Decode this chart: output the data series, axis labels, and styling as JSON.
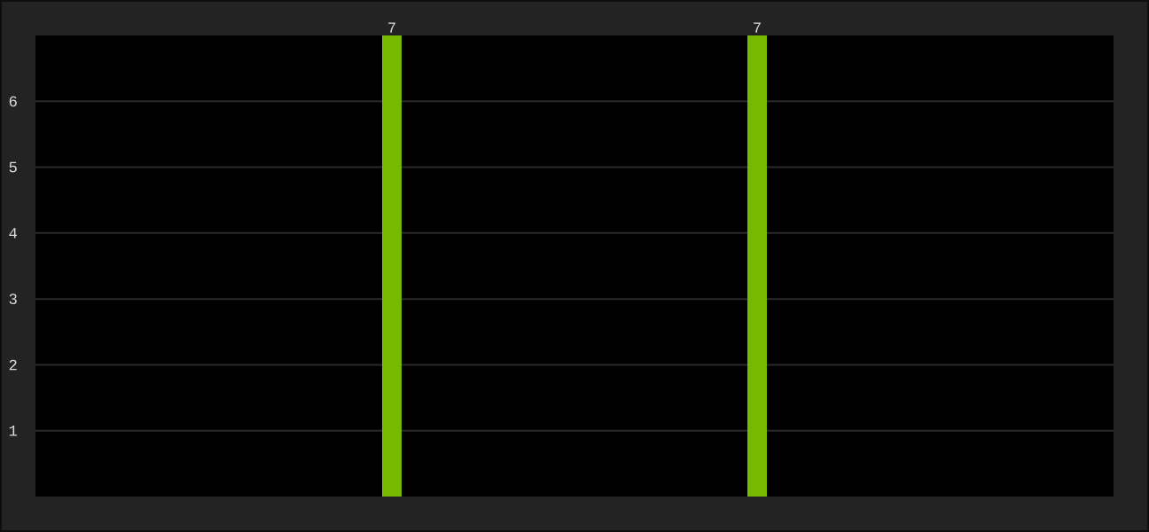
{
  "chart_data": {
    "type": "bar",
    "categories": [
      null,
      null
    ],
    "values": [
      7,
      7
    ],
    "color": "#76b900",
    "ylim": [
      0,
      7
    ],
    "yticks": [
      1,
      2,
      3,
      4,
      5,
      6
    ],
    "grid": "y",
    "data_labels": true,
    "tick_labels": "y"
  }
}
